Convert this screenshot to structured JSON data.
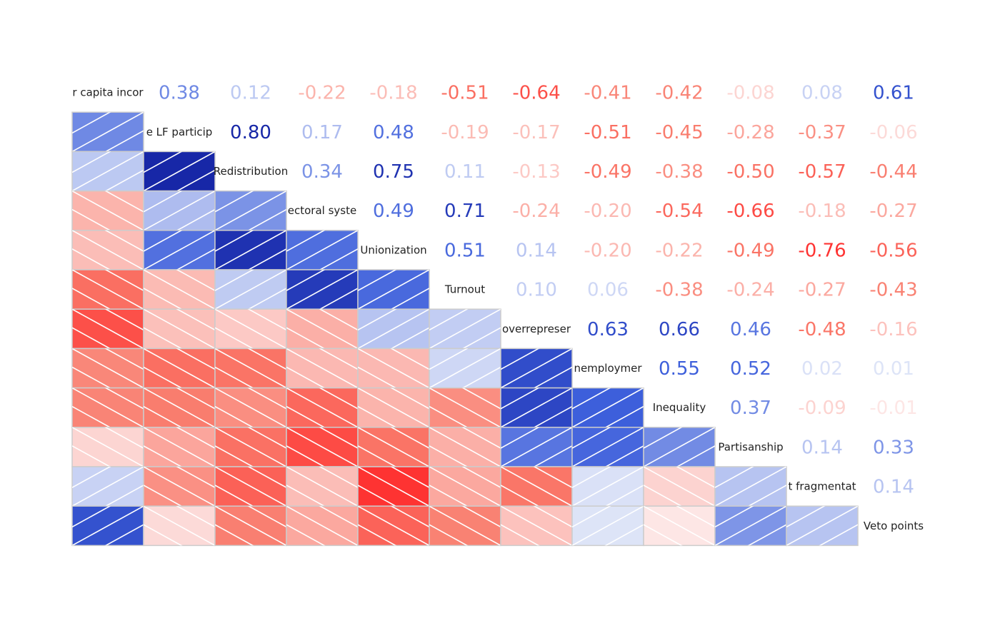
{
  "chart_data": {
    "type": "heatmap",
    "title": "",
    "style": "corrplot-mixed",
    "lower_method": "shade",
    "upper_method": "number",
    "variables": [
      "Per capita income",
      "Female LF participation",
      "Redistribution",
      "Electoral system",
      "Unionization",
      "Turnout",
      "Overrepresentation",
      "Unemployment",
      "Inequality",
      "Partisanship",
      "Government fragmentation",
      "Veto points"
    ],
    "diagonal_labels_as_shown": [
      "r capita incor",
      "e LF particip",
      "Redistribution",
      "ectoral syste",
      "Unionization",
      "Turnout",
      "overrepreser",
      "nemploymer",
      "Inequality",
      "Partisanship",
      "t fragmentat",
      "Veto points"
    ],
    "matrix": [
      [
        null,
        0.38,
        0.12,
        -0.22,
        -0.18,
        -0.51,
        -0.64,
        -0.41,
        -0.42,
        -0.08,
        0.08,
        0.61
      ],
      [
        0.38,
        null,
        0.8,
        0.17,
        0.48,
        -0.19,
        -0.17,
        -0.51,
        -0.45,
        -0.28,
        -0.37,
        -0.06
      ],
      [
        0.12,
        0.8,
        null,
        0.34,
        0.75,
        0.11,
        -0.13,
        -0.49,
        -0.38,
        -0.5,
        -0.57,
        -0.44
      ],
      [
        -0.22,
        0.17,
        0.34,
        null,
        0.49,
        0.71,
        -0.24,
        -0.2,
        -0.54,
        -0.66,
        -0.18,
        -0.27
      ],
      [
        -0.18,
        0.48,
        0.75,
        0.49,
        null,
        0.51,
        0.14,
        -0.2,
        -0.22,
        -0.49,
        -0.76,
        -0.56
      ],
      [
        -0.51,
        -0.19,
        0.11,
        0.71,
        0.51,
        null,
        0.1,
        0.06,
        -0.38,
        -0.24,
        -0.27,
        -0.43
      ],
      [
        -0.64,
        -0.17,
        -0.13,
        -0.24,
        0.14,
        0.1,
        null,
        0.63,
        0.66,
        0.46,
        -0.48,
        -0.16
      ],
      [
        -0.41,
        -0.51,
        -0.49,
        -0.2,
        -0.2,
        0.06,
        0.63,
        null,
        0.55,
        0.52,
        0.02,
        0.01
      ],
      [
        -0.42,
        -0.45,
        -0.38,
        -0.54,
        -0.22,
        -0.38,
        0.66,
        0.55,
        null,
        0.37,
        -0.09,
        -0.01
      ],
      [
        -0.08,
        -0.28,
        -0.5,
        -0.66,
        -0.49,
        -0.24,
        0.46,
        0.52,
        0.37,
        null,
        0.14,
        0.33
      ],
      [
        0.08,
        -0.37,
        -0.57,
        -0.18,
        -0.76,
        -0.27,
        -0.48,
        0.02,
        -0.09,
        0.14,
        null,
        0.14
      ],
      [
        0.61,
        -0.06,
        -0.44,
        -0.27,
        -0.56,
        -0.43,
        -0.16,
        0.01,
        -0.01,
        0.33,
        0.14,
        null
      ]
    ],
    "value_range": [
      -1,
      1
    ],
    "colors": {
      "positive_strong": "#101c9c",
      "positive_mid": "#3d5fdb",
      "positive_weak": "#e0e6f8",
      "negative_weak": "#fde8e8",
      "negative_mid": "#f97d6e",
      "negative_strong": "#ff2a2a",
      "cell_border": "#cccccc",
      "hatch": "#ffffff",
      "label": "#222222"
    },
    "legend": "none"
  }
}
